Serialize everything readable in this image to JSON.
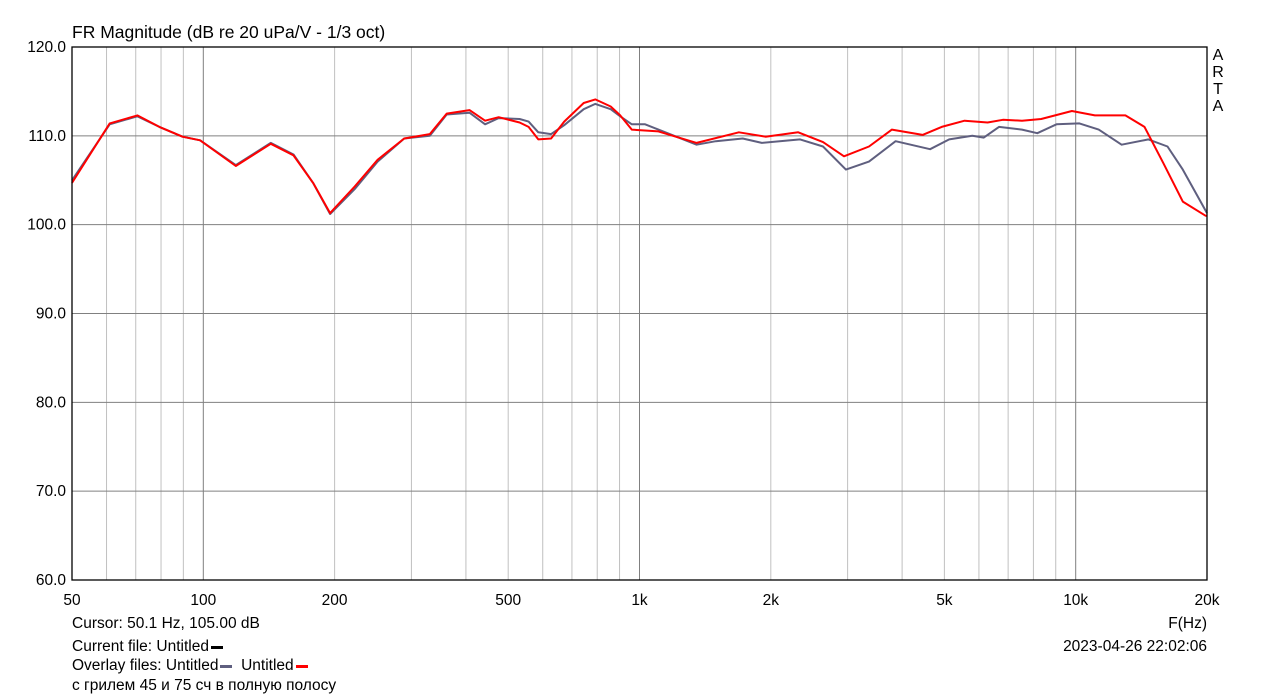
{
  "chart_data": {
    "type": "line",
    "title": "FR Magnitude (dB re 20 uPa/V - 1/3 oct)",
    "xlabel": "F(Hz)",
    "ylabel": "",
    "xscale": "log",
    "xlim": [
      50,
      20000
    ],
    "ylim": [
      60,
      120
    ],
    "grid": true,
    "x_ticks": [
      50,
      100,
      200,
      500,
      1000,
      2000,
      5000,
      10000,
      20000
    ],
    "x_tick_labels": [
      "50",
      "100",
      "200",
      "500",
      "1k",
      "2k",
      "5k",
      "10k",
      "20k"
    ],
    "y_ticks": [
      60,
      70,
      80,
      90,
      100,
      110,
      120
    ],
    "y_tick_labels": [
      "60.0",
      "70.0",
      "80.0",
      "90.0",
      "100.0",
      "110.0",
      "120.0"
    ],
    "series": [
      {
        "name": "Untitled",
        "color": "#5f5f7f",
        "points": [
          [
            50,
            105.0
          ],
          [
            61,
            111.3
          ],
          [
            70.6,
            112.2
          ],
          [
            79.3,
            111.0
          ],
          [
            89.6,
            109.9
          ],
          [
            98.3,
            109.5
          ],
          [
            118.7,
            106.7
          ],
          [
            142.8,
            109.2
          ],
          [
            161,
            107.9
          ],
          [
            178.5,
            104.7
          ],
          [
            195.3,
            101.2
          ],
          [
            222.4,
            104.0
          ],
          [
            251,
            107.1
          ],
          [
            288.8,
            109.7
          ],
          [
            330.6,
            110.0
          ],
          [
            361.4,
            112.4
          ],
          [
            407.6,
            112.6
          ],
          [
            442.6,
            111.3
          ],
          [
            475.5,
            112.0
          ],
          [
            531,
            111.9
          ],
          [
            557,
            111.6
          ],
          [
            586,
            110.4
          ],
          [
            627,
            110.2
          ],
          [
            672,
            111.2
          ],
          [
            745,
            113.0
          ],
          [
            792,
            113.6
          ],
          [
            859,
            113.0
          ],
          [
            903,
            112.2
          ],
          [
            960,
            111.3
          ],
          [
            1030,
            111.3
          ],
          [
            1105,
            110.7
          ],
          [
            1352,
            109.0
          ],
          [
            1496,
            109.4
          ],
          [
            1724,
            109.7
          ],
          [
            1907,
            109.2
          ],
          [
            2335,
            109.6
          ],
          [
            2634,
            108.8
          ],
          [
            2973,
            106.2
          ],
          [
            3358,
            107.1
          ],
          [
            3865,
            109.4
          ],
          [
            4636,
            108.5
          ],
          [
            5130,
            109.6
          ],
          [
            5795,
            110.0
          ],
          [
            6157,
            109.8
          ],
          [
            6672,
            111.0
          ],
          [
            7530,
            110.7
          ],
          [
            8165,
            110.3
          ],
          [
            9035,
            111.3
          ],
          [
            10200,
            111.4
          ],
          [
            11290,
            110.7
          ],
          [
            12740,
            109.0
          ],
          [
            14680,
            109.6
          ],
          [
            16240,
            108.8
          ],
          [
            17600,
            106.2
          ],
          [
            20000,
            101.3
          ]
        ]
      },
      {
        "name": "Untitled",
        "color": "#ff0000",
        "points": [
          [
            50,
            104.7
          ],
          [
            61,
            111.4
          ],
          [
            70.6,
            112.3
          ],
          [
            79.3,
            111.0
          ],
          [
            89.6,
            109.9
          ],
          [
            98.3,
            109.5
          ],
          [
            118.7,
            106.6
          ],
          [
            142.8,
            109.1
          ],
          [
            161,
            107.8
          ],
          [
            178.5,
            104.7
          ],
          [
            195.3,
            101.3
          ],
          [
            222.4,
            104.3
          ],
          [
            251,
            107.3
          ],
          [
            288.8,
            109.7
          ],
          [
            330.6,
            110.2
          ],
          [
            361.4,
            112.5
          ],
          [
            407.6,
            112.9
          ],
          [
            442.6,
            111.7
          ],
          [
            475.5,
            112.1
          ],
          [
            531,
            111.5
          ],
          [
            557,
            111.0
          ],
          [
            586,
            109.6
          ],
          [
            627,
            109.7
          ],
          [
            672,
            111.6
          ],
          [
            745,
            113.7
          ],
          [
            792,
            114.1
          ],
          [
            859,
            113.3
          ],
          [
            903,
            112.3
          ],
          [
            960,
            110.7
          ],
          [
            1105,
            110.5
          ],
          [
            1352,
            109.2
          ],
          [
            1690,
            110.4
          ],
          [
            1945,
            109.9
          ],
          [
            2311,
            110.4
          ],
          [
            2634,
            109.3
          ],
          [
            2944,
            107.7
          ],
          [
            3358,
            108.8
          ],
          [
            3790,
            110.7
          ],
          [
            4457,
            110.1
          ],
          [
            4929,
            111.0
          ],
          [
            5563,
            111.7
          ],
          [
            6281,
            111.5
          ],
          [
            6810,
            111.8
          ],
          [
            7530,
            111.7
          ],
          [
            8335,
            111.9
          ],
          [
            9800,
            112.8
          ],
          [
            11065,
            112.3
          ],
          [
            13000,
            112.3
          ],
          [
            14380,
            111.0
          ],
          [
            15900,
            106.9
          ],
          [
            17600,
            102.6
          ],
          [
            19860,
            101.0
          ],
          [
            20000,
            101.0
          ]
        ]
      }
    ]
  },
  "watermark": "ARTA",
  "info": {
    "cursor": "Cursor: 50.1 Hz, 105.00 dB",
    "current_file_label": "Current file: Untitled",
    "current_file_color": "#000000",
    "overlay_label": "Overlay files: Untitled",
    "overlay2_label": "Untitled",
    "comment": "с грилем 45 и 75 сч в полную полосу",
    "datetime": "2023-04-26   22:02:06"
  }
}
